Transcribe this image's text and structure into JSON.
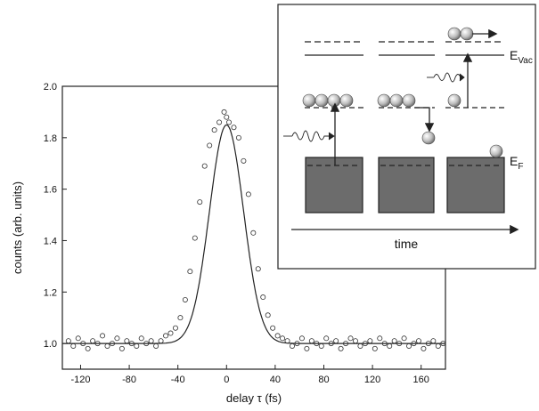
{
  "chart_data": {
    "type": "scatter",
    "xlabel": "delay τ (fs)",
    "ylabel": "counts (arb. units)",
    "xlim": [
      -135,
      180
    ],
    "ylim": [
      0.9,
      2.0
    ],
    "xticks": [
      -120,
      -80,
      -40,
      0,
      40,
      80,
      120,
      160
    ],
    "yticks": [
      1.0,
      1.2,
      1.4,
      1.6,
      1.8,
      2.0
    ],
    "xtick_labels": [
      "-120",
      "-80",
      "-40",
      "0",
      "40",
      "80",
      "120",
      "160"
    ],
    "ytick_labels": [
      "1.0",
      "1.2",
      "1.4",
      "1.6",
      "1.8",
      "2.0"
    ],
    "series": [
      {
        "kind": "open-circle markers (measured data)",
        "x": [
          -130,
          -126,
          -122,
          -118,
          -114,
          -110,
          -106,
          -102,
          -98,
          -94,
          -90,
          -86,
          -82,
          -78,
          -74,
          -70,
          -66,
          -62,
          -58,
          -54,
          -50,
          -46,
          -42,
          -38,
          -34,
          -30,
          -26,
          -22,
          -18,
          -14,
          -10,
          -6,
          -2,
          0,
          2,
          6,
          10,
          14,
          18,
          22,
          26,
          30,
          34,
          38,
          42,
          46,
          50,
          54,
          58,
          62,
          66,
          70,
          74,
          78,
          82,
          86,
          90,
          94,
          98,
          102,
          106,
          110,
          114,
          118,
          122,
          126,
          130,
          134,
          138,
          142,
          146,
          150,
          154,
          158,
          162,
          166,
          170,
          174,
          178
        ],
        "y": [
          1.01,
          0.99,
          1.02,
          1.0,
          0.98,
          1.01,
          1.0,
          1.03,
          0.99,
          1.0,
          1.02,
          0.98,
          1.01,
          1.0,
          0.99,
          1.02,
          1.0,
          1.01,
          0.99,
          1.01,
          1.03,
          1.04,
          1.06,
          1.1,
          1.17,
          1.28,
          1.41,
          1.55,
          1.69,
          1.77,
          1.83,
          1.86,
          1.9,
          1.88,
          1.86,
          1.84,
          1.8,
          1.71,
          1.58,
          1.43,
          1.29,
          1.18,
          1.11,
          1.06,
          1.03,
          1.02,
          1.01,
          0.99,
          1.0,
          1.02,
          0.98,
          1.01,
          1.0,
          0.99,
          1.02,
          1.0,
          1.01,
          0.98,
          1.0,
          1.02,
          1.01,
          0.99,
          1.0,
          1.01,
          0.98,
          1.02,
          1.0,
          0.99,
          1.01,
          1.0,
          1.02,
          0.99,
          1.0,
          1.01,
          0.98,
          1.0,
          1.01,
          0.99,
          1.0
        ]
      },
      {
        "kind": "solid line (fit)",
        "center": 0,
        "baseline": 1.0,
        "amplitude": 0.85,
        "fwhm_fs": 33
      }
    ],
    "grid": false,
    "legend": "none"
  },
  "inset": {
    "label_vac_main": "E",
    "label_vac_sub": "Vac",
    "label_f_main": "E",
    "label_f_sub": "F",
    "time_label": "time"
  }
}
